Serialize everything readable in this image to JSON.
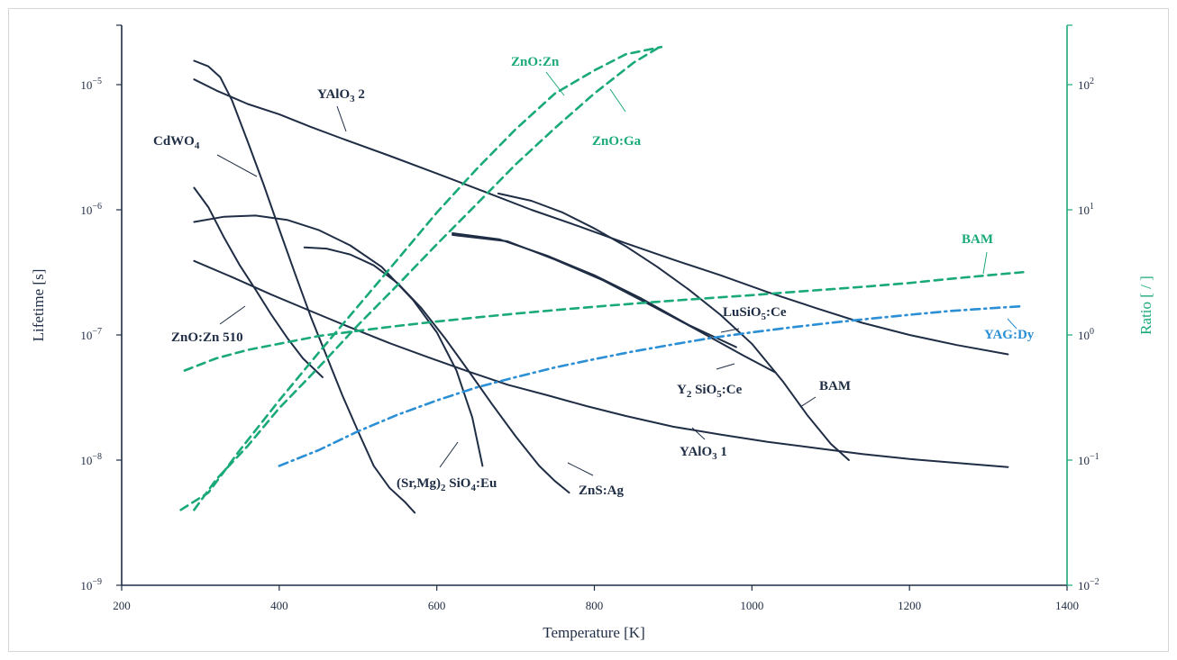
{
  "chart_data": {
    "type": "line",
    "xlabel": "Temperature [K]",
    "ylabel": "Lifetime [s]",
    "y2label": "Ratio [ / ]",
    "xlim": [
      200,
      1400
    ],
    "x_ticks": [
      "200",
      "400",
      "600",
      "800",
      "1000",
      "1200",
      "1400"
    ],
    "ylim": [
      1e-09,
      3e-05
    ],
    "yscale": "log",
    "y_ticks": [
      {
        "value": 1e-09,
        "mantissa": "10",
        "exp": "−9"
      },
      {
        "value": 1e-08,
        "mantissa": "10",
        "exp": "−8"
      },
      {
        "value": 1e-07,
        "mantissa": "10",
        "exp": "−7"
      },
      {
        "value": 1e-06,
        "mantissa": "10",
        "exp": "−6"
      },
      {
        "value": 1e-05,
        "mantissa": "10",
        "exp": "−5"
      }
    ],
    "y2lim": [
      0.01,
      300
    ],
    "y2scale": "log",
    "y2_ticks": [
      {
        "value": 0.01,
        "mantissa": "10",
        "exp": "−2"
      },
      {
        "value": 0.1,
        "mantissa": "10",
        "exp": "−1"
      },
      {
        "value": 1,
        "mantissa": "10",
        "exp": "0"
      },
      {
        "value": 10,
        "mantissa": "10",
        "exp": "1"
      },
      {
        "value": 100,
        "mantissa": "10",
        "exp": "2"
      }
    ],
    "grid": false,
    "colors": {
      "lifetime": "#1f2d45",
      "ratio": "#1aa97a",
      "yagdy": "#2b8fd6",
      "axis_left": "#1f2d45",
      "axis_right": "#1aa97a"
    },
    "series": [
      {
        "axis": "y",
        "style": "solid",
        "color": "lifetime",
        "labelKey": "yalo3_2",
        "x": [
          292,
          320,
          360,
          400,
          440,
          480,
          540,
          600,
          660,
          720,
          780,
          840,
          900,
          960,
          1020,
          1080,
          1140,
          1200,
          1260,
          1325
        ],
        "y": [
          1.1e-05,
          9e-06,
          7e-06,
          5.8e-06,
          4.6e-06,
          3.7e-06,
          2.7e-06,
          1.95e-06,
          1.4e-06,
          1e-06,
          7.4e-07,
          5.4e-07,
          4e-07,
          3e-07,
          2.2e-07,
          1.65e-07,
          1.25e-07,
          1e-07,
          8.3e-08,
          7e-08
        ]
      },
      {
        "axis": "y",
        "style": "solid",
        "color": "lifetime",
        "labelKey": "cdwo4",
        "x": [
          292,
          310,
          325,
          340,
          360,
          380,
          400,
          420,
          440,
          460,
          480,
          500,
          520,
          540,
          560,
          572
        ],
        "y": [
          1.55e-05,
          1.4e-05,
          1.15e-05,
          7.5e-06,
          3.5e-06,
          1.6e-06,
          7e-07,
          3.1e-07,
          1.4e-07,
          6.8e-08,
          3.3e-08,
          1.7e-08,
          9e-09,
          6e-09,
          4.6e-09,
          3.8e-09
        ]
      },
      {
        "axis": "y",
        "style": "solid",
        "color": "lifetime",
        "labelKey": "zno_zn510",
        "x": [
          292,
          310,
          330,
          350,
          370,
          390,
          410,
          430,
          455
        ],
        "y": [
          1.5e-06,
          1.05e-06,
          6e-07,
          3.6e-07,
          2.3e-07,
          1.45e-07,
          9.5e-08,
          6.5e-08,
          4.6e-08
        ]
      },
      {
        "axis": "y",
        "style": "solid",
        "color": "lifetime",
        "labelKey": "",
        "x": [
          292,
          330,
          370,
          410,
          450,
          490,
          530,
          570,
          600,
          625,
          645,
          658
        ],
        "y": [
          8e-07,
          8.8e-07,
          9e-07,
          8.3e-07,
          6.9e-07,
          5.2e-07,
          3.5e-07,
          1.9e-07,
          1.05e-07,
          5.2e-08,
          2.2e-08,
          9e-09
        ]
      },
      {
        "axis": "y",
        "style": "solid",
        "color": "lifetime",
        "labelKey": "",
        "x": [
          292,
          340,
          390,
          440,
          490,
          540,
          590,
          640,
          690,
          740,
          790,
          840,
          900,
          960,
          1020,
          1080,
          1140,
          1200,
          1260,
          1325
        ],
        "y": [
          3.9e-07,
          2.9e-07,
          2.1e-07,
          1.55e-07,
          1.15e-07,
          8.6e-08,
          6.6e-08,
          5.1e-08,
          4e-08,
          3.3e-08,
          2.7e-08,
          2.25e-08,
          1.85e-08,
          1.6e-08,
          1.4e-08,
          1.25e-08,
          1.12e-08,
          1.02e-08,
          9.5e-09,
          8.8e-09
        ]
      },
      {
        "axis": "y",
        "style": "solid",
        "color": "lifetime",
        "labelKey": "",
        "x": [
          432,
          460,
          490,
          520,
          550,
          580,
          610,
          640,
          670,
          700,
          730,
          750,
          768
        ],
        "y": [
          5e-07,
          4.9e-07,
          4.4e-07,
          3.6e-07,
          2.6e-07,
          1.65e-07,
          9.5e-08,
          5.2e-08,
          2.8e-08,
          1.55e-08,
          9e-09,
          6.8e-09,
          5.5e-09
        ]
      },
      {
        "axis": "y",
        "style": "solid",
        "color": "lifetime",
        "labelKey": "",
        "x": [
          678,
          720,
          760,
          800,
          840,
          880,
          920,
          960,
          1000,
          1040,
          1070,
          1100,
          1123
        ],
        "y": [
          1.35e-06,
          1.18e-06,
          9.5e-07,
          7.1e-07,
          5.1e-07,
          3.5e-07,
          2.3e-07,
          1.45e-07,
          8.5e-08,
          4.2e-08,
          2.3e-08,
          1.35e-08,
          1e-08
        ]
      },
      {
        "axis": "y",
        "style": "solid",
        "color": "lifetime",
        "labelKey": "",
        "x": [
          620,
          680,
          740,
          800,
          860,
          920,
          980
        ],
        "y": [
          6.5e-07,
          5.8e-07,
          4.3e-07,
          3e-07,
          1.95e-07,
          1.2e-07,
          8e-08
        ]
      },
      {
        "axis": "y",
        "style": "solid",
        "color": "lifetime",
        "labelKey": "",
        "x": [
          620,
          690,
          750,
          810,
          870,
          930,
          990,
          1030
        ],
        "y": [
          6.3e-07,
          5.6e-07,
          4e-07,
          2.75e-07,
          1.75e-07,
          1.1e-07,
          6.8e-08,
          5e-08
        ]
      },
      {
        "axis": "y2",
        "style": "dashed",
        "color": "ratio",
        "labelKey": "zno_zn",
        "x": [
          275,
          310,
          350,
          400,
          450,
          500,
          550,
          600,
          650,
          700,
          750,
          800,
          840,
          885
        ],
        "y": [
          0.04,
          0.055,
          0.12,
          0.3,
          0.72,
          1.7,
          4.0,
          9.5,
          21,
          44,
          85,
          130,
          175,
          200
        ]
      },
      {
        "axis": "y2",
        "style": "dashed",
        "color": "ratio",
        "labelKey": "zno_ga",
        "x": [
          292,
          320,
          360,
          400,
          450,
          500,
          550,
          600,
          650,
          700,
          750,
          800,
          850,
          880
        ],
        "y": [
          0.04,
          0.07,
          0.13,
          0.26,
          0.55,
          1.2,
          2.5,
          5.3,
          11,
          23,
          45,
          85,
          150,
          195
        ]
      },
      {
        "axis": "y2",
        "style": "dashed",
        "color": "ratio",
        "labelKey": "bam_ratio",
        "x": [
          280,
          320,
          360,
          400,
          450,
          500,
          550,
          600,
          650,
          700,
          750,
          800,
          850,
          900,
          950,
          1000,
          1050,
          1100,
          1150,
          1200,
          1250,
          1300,
          1350
        ],
        "y": [
          0.52,
          0.65,
          0.76,
          0.85,
          0.98,
          1.08,
          1.18,
          1.28,
          1.38,
          1.48,
          1.58,
          1.68,
          1.78,
          1.88,
          1.98,
          2.08,
          2.2,
          2.32,
          2.45,
          2.6,
          2.8,
          3.0,
          3.2
        ]
      },
      {
        "axis": "y2",
        "style": "dashdot",
        "color": "yagdy",
        "labelKey": "yag_dy",
        "x": [
          400,
          450,
          500,
          550,
          600,
          650,
          700,
          750,
          800,
          850,
          900,
          950,
          1000,
          1050,
          1100,
          1150,
          1200,
          1250,
          1300,
          1345
        ],
        "y": [
          0.09,
          0.12,
          0.17,
          0.23,
          0.3,
          0.38,
          0.46,
          0.55,
          0.64,
          0.74,
          0.84,
          0.95,
          1.05,
          1.15,
          1.25,
          1.35,
          1.45,
          1.55,
          1.63,
          1.7
        ]
      }
    ],
    "labels": [
      {
        "key": "yalo3_2",
        "base": "YAlO",
        "sub": "3",
        "tail": " 2",
        "color": "lifetime"
      },
      {
        "key": "cdwo4",
        "base": "CdWO",
        "sub": "4",
        "tail": "",
        "color": "lifetime"
      },
      {
        "key": "zno_zn510",
        "base": "ZnO:Zn 510",
        "sub": "",
        "tail": "",
        "color": "lifetime"
      },
      {
        "key": "sr_mg",
        "base": "(Sr,Mg)",
        "sub": "2",
        "tail": " SiO",
        "sub2": "4",
        "tail2": ":Eu",
        "color": "lifetime"
      },
      {
        "key": "zns_ag",
        "base": "ZnS:Ag",
        "sub": "",
        "tail": "",
        "color": "lifetime"
      },
      {
        "key": "yalo3_1",
        "base": "YAlO",
        "sub": "3",
        "tail": " 1",
        "color": "lifetime"
      },
      {
        "key": "y2sio5",
        "base": "Y",
        "sub": "2",
        "tail": " SiO",
        "sub2": "5",
        "tail2": ":Ce",
        "color": "lifetime"
      },
      {
        "key": "lusio5",
        "base": "LuSiO",
        "sub": "5",
        "tail": ":Ce",
        "color": "lifetime"
      },
      {
        "key": "bam_life",
        "base": "BAM",
        "sub": "",
        "tail": "",
        "color": "lifetime"
      },
      {
        "key": "zno_zn",
        "base": "ZnO:Zn",
        "sub": "",
        "tail": "",
        "color": "ratio"
      },
      {
        "key": "zno_ga",
        "base": "ZnO:Ga",
        "sub": "",
        "tail": "",
        "color": "ratio"
      },
      {
        "key": "bam_ratio",
        "base": "BAM",
        "sub": "",
        "tail": "",
        "color": "ratio"
      },
      {
        "key": "yag_dy",
        "base": "YAG:Dy",
        "sub": "",
        "tail": "",
        "color": "yagdy"
      }
    ]
  }
}
